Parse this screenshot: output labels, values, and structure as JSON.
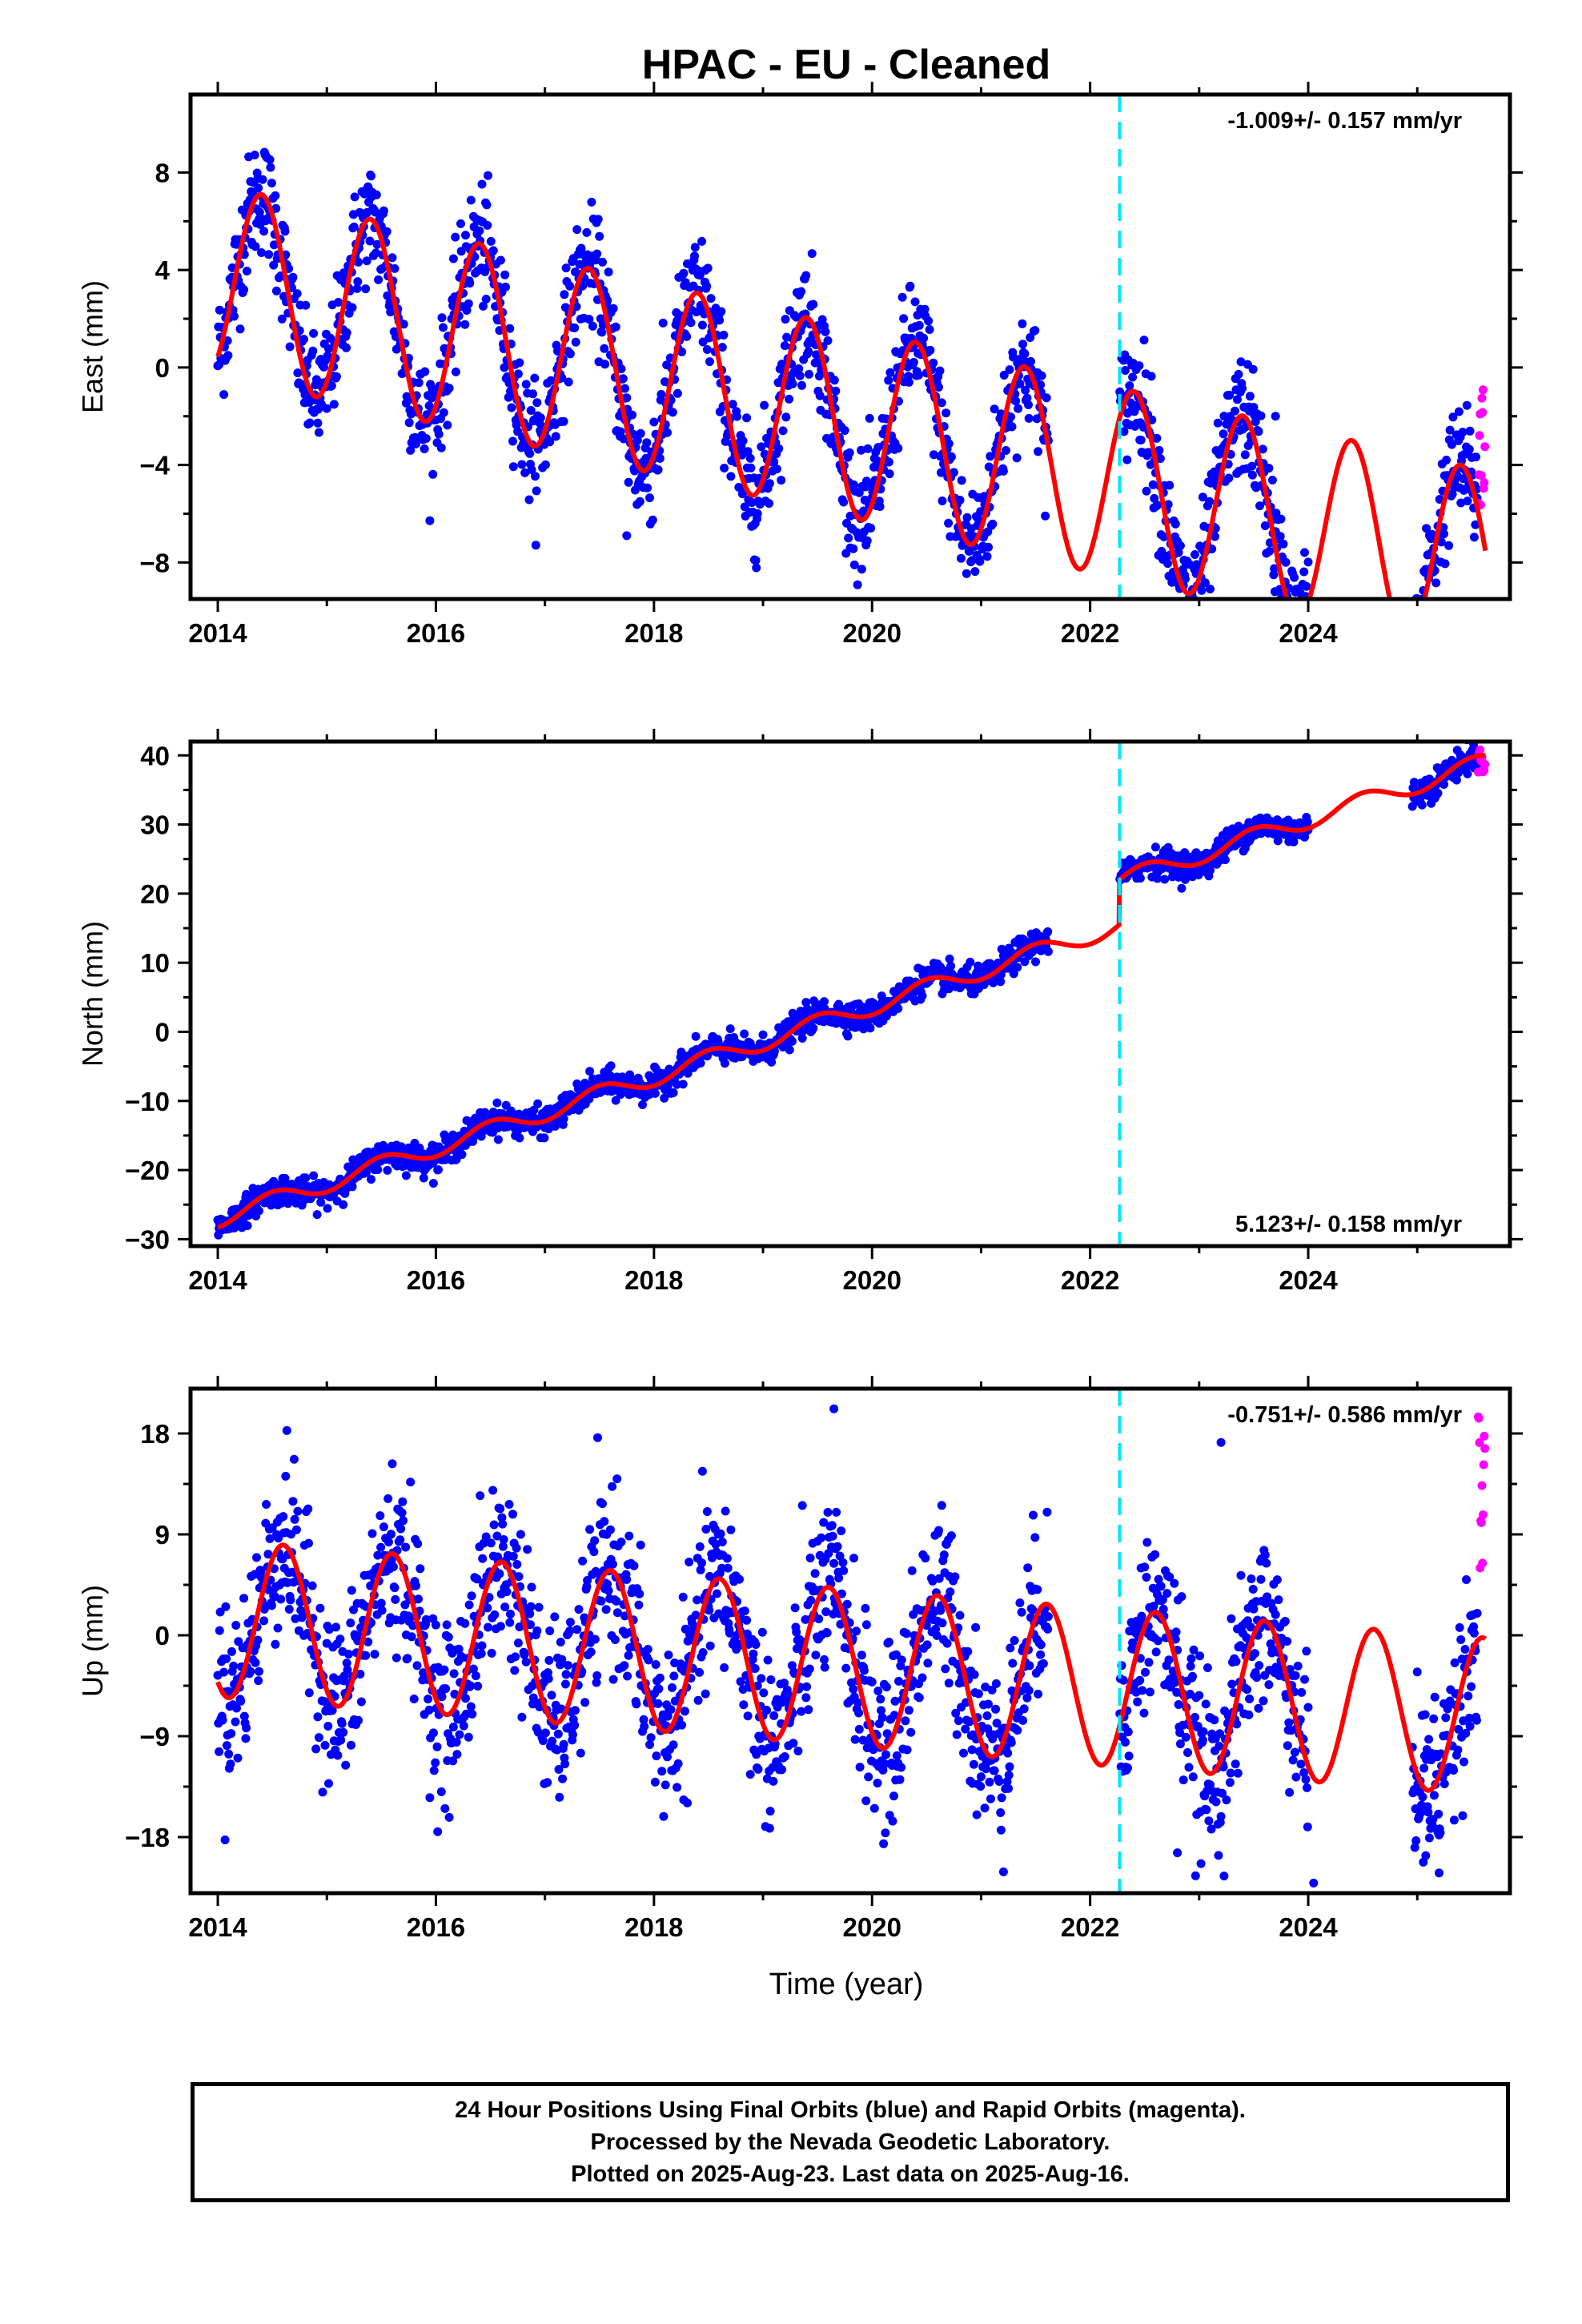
{
  "title": "HPAC  - EU - Cleaned",
  "xlabel": "Time (year)",
  "footer": {
    "line1": "24 Hour Positions Using Final Orbits (blue) and Rapid Orbits (magenta).",
    "line2": "Processed by the Nevada Geodetic Laboratory.",
    "line3": "Plotted on 2025-Aug-23. Last data on 2025-Aug-16."
  },
  "colors": {
    "final_orbits": "#0000ff",
    "rapid_orbits": "#ff00ff",
    "model": "#ff0000",
    "equipment_change": "#00e5ff"
  },
  "chart_data": [
    {
      "type": "scatter",
      "name": "East",
      "ylabel": "East (mm)",
      "xlim": [
        2013.75,
        2025.85
      ],
      "ylim": [
        -9.5,
        11.2
      ],
      "xticks": [
        "2014",
        "2016",
        "2018",
        "2020",
        "2022",
        "2024"
      ],
      "yticks": [
        -8,
        -4,
        0,
        4,
        8
      ],
      "rate_text": "-1.009+/- 0.157 mm/yr",
      "rate_position": "top-right",
      "equipment_change_year": 2022.27,
      "model": {
        "trend_mm_per_yr": -1.009,
        "offset_at_2014": 3.6,
        "seasonal_amplitude": 3.9,
        "seasonal_peak_fraction": 0.4,
        "offset_step": 0.0
      },
      "scatter_sigma": 1.2,
      "data_start": 2014.0,
      "final_data_end": 2025.55,
      "rapid_data": {
        "start": 2025.56,
        "end": 2025.62,
        "ymin": -6.0,
        "ymax": -0.9
      },
      "gaps": [
        [
          2021.62,
          2022.27
        ],
        [
          2024.0,
          2024.95
        ]
      ],
      "outliers": [
        [
          2017.75,
          -6.9
        ],
        [
          2019.8,
          -7.4
        ],
        [
          2023.7,
          -2.0
        ]
      ]
    },
    {
      "type": "scatter",
      "name": "North",
      "ylabel": "North (mm)",
      "xlim": [
        2013.75,
        2025.85
      ],
      "ylim": [
        -31,
        42
      ],
      "xticks": [
        "2014",
        "2016",
        "2018",
        "2020",
        "2022",
        "2024"
      ],
      "yticks": [
        -30,
        -20,
        -10,
        0,
        10,
        20,
        30,
        40
      ],
      "rate_text": "5.123+/- 0.158 mm/yr",
      "rate_position": "bottom-right",
      "equipment_change_year": 2022.27,
      "model": {
        "trend_mm_per_yr": 5.123,
        "offset_at_2014": -27.0,
        "seasonal_amplitude": 1.3,
        "seasonal_peak_fraction": 0.5,
        "offset_step": 6.5
      },
      "scatter_sigma": 1.0,
      "data_start": 2014.0,
      "final_data_end": 2025.55,
      "rapid_data": {
        "start": 2025.56,
        "end": 2025.62,
        "ymin": 37.0,
        "ymax": 41.0
      },
      "gaps": [
        [
          2021.62,
          2022.27
        ],
        [
          2024.0,
          2024.95
        ]
      ],
      "outliers": []
    },
    {
      "type": "scatter",
      "name": "Up",
      "ylabel": "Up (mm)",
      "xlim": [
        2013.75,
        2025.85
      ],
      "ylim": [
        -23,
        22
      ],
      "xticks": [
        "2014",
        "2016",
        "2018",
        "2020",
        "2022",
        "2024"
      ],
      "yticks": [
        -18,
        -9,
        0,
        9,
        18
      ],
      "rate_text": "-0.751+/- 0.586 mm/yr",
      "rate_position": "top-right",
      "equipment_change_year": 2022.27,
      "model": {
        "trend_mm_per_yr": -0.751,
        "offset_at_2014": 1.5,
        "seasonal_amplitude": 7.0,
        "seasonal_peak_fraction": 0.6,
        "offset_step": 0.0
      },
      "scatter_sigma": 3.8,
      "data_start": 2014.0,
      "final_data_end": 2025.55,
      "rapid_data": {
        "start": 2025.56,
        "end": 2025.62,
        "ymin": 6.0,
        "ymax": 19.5
      },
      "gaps": [
        [
          2021.62,
          2022.27
        ],
        [
          2024.0,
          2024.95
        ]
      ],
      "outliers": [
        [
          2019.65,
          20.2
        ],
        [
          2023.2,
          17.2
        ],
        [
          2024.05,
          -22.1
        ],
        [
          2025.2,
          -21.2
        ],
        [
          2022.8,
          -19.4
        ]
      ]
    }
  ]
}
